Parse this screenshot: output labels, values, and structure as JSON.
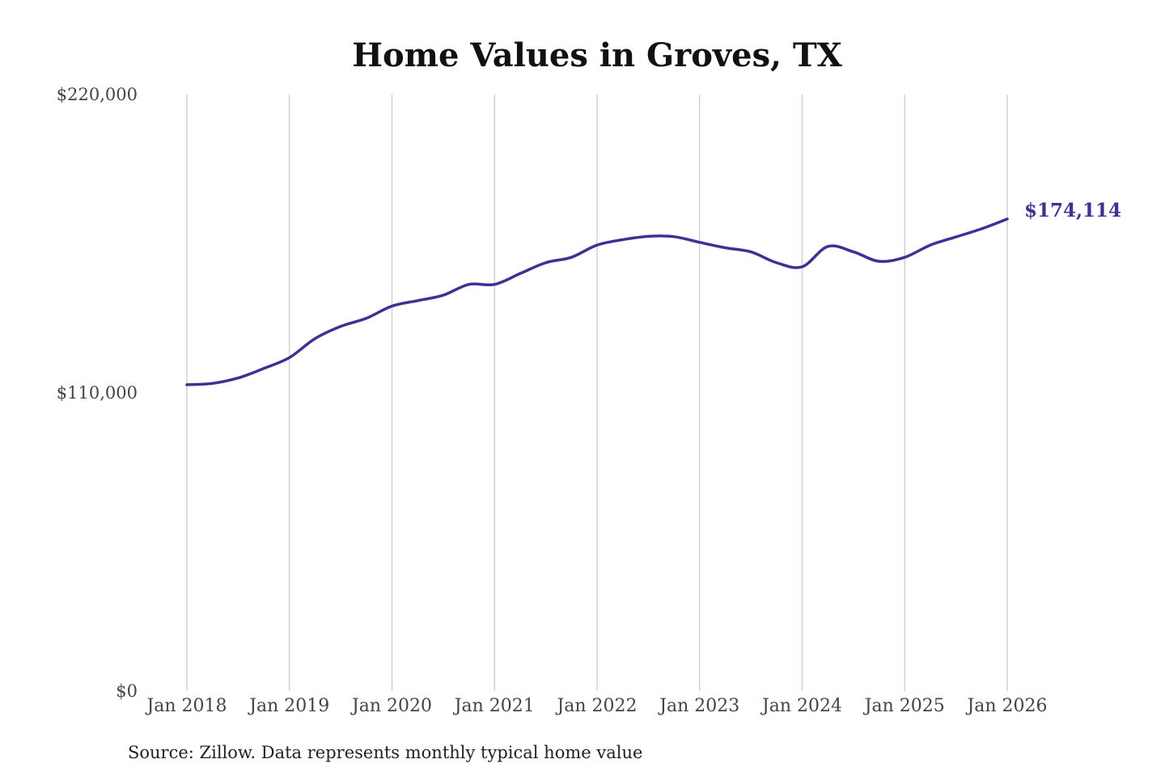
{
  "chart_data": {
    "type": "line",
    "title": "Home Values in Groves, TX",
    "source": "Source: Zillow. Data represents monthly typical home value",
    "ylim": [
      0,
      220000
    ],
    "y_tick_values": [
      0,
      110000,
      220000
    ],
    "y_tick_labels": [
      "$0",
      "$110,000",
      "$220,000"
    ],
    "x_range": [
      "2018-01",
      "2026-01"
    ],
    "x_tick_labels": [
      "Jan 2018",
      "Jan 2019",
      "Jan 2020",
      "Jan 2021",
      "Jan 2022",
      "Jan 2023",
      "Jan 2024",
      "Jan 2025",
      "Jan 2026"
    ],
    "grid": "vertical lines at x ticks",
    "legend": "none",
    "line_color": "#3b3394",
    "end_label": "$174,114",
    "series": [
      {
        "x": [
          "2018-01",
          "2018-04",
          "2018-07",
          "2018-10",
          "2019-01",
          "2019-04",
          "2019-07",
          "2019-10",
          "2020-01",
          "2020-04",
          "2020-07",
          "2020-10",
          "2021-01",
          "2021-04",
          "2021-07",
          "2021-10",
          "2022-01",
          "2022-04",
          "2022-07",
          "2022-10",
          "2023-01",
          "2023-04",
          "2023-07",
          "2023-10",
          "2024-01",
          "2024-04",
          "2024-07",
          "2024-10",
          "2025-01",
          "2025-04",
          "2025-07",
          "2025-10",
          "2026-01"
        ],
        "y": [
          113000,
          113500,
          115500,
          119000,
          123000,
          130000,
          134500,
          137500,
          142000,
          144000,
          146000,
          150000,
          150000,
          154000,
          158000,
          160000,
          164500,
          166500,
          167700,
          167600,
          165500,
          163500,
          162000,
          158000,
          156500,
          164000,
          162000,
          158500,
          160000,
          164500,
          167500,
          170500,
          174114
        ]
      }
    ]
  }
}
